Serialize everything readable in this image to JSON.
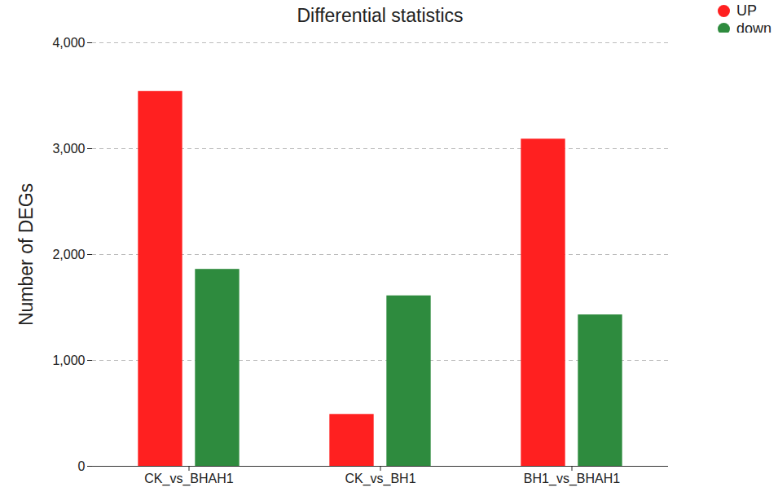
{
  "chart_data": {
    "type": "bar",
    "title": "Differential statistics",
    "y_label": "Number of DEGs",
    "categories": [
      "CK_vs_BHAH1",
      "CK_vs_BH1",
      "BH1_vs_BHAH1"
    ],
    "series": [
      {
        "name": "UP",
        "color": "#ff2020",
        "values": [
          3540,
          490,
          3090
        ]
      },
      {
        "name": "down",
        "color": "#2e8b3e",
        "values": [
          1860,
          1610,
          1430
        ]
      }
    ],
    "ylim": [
      0,
      4000
    ],
    "yticks": [
      0,
      1000,
      2000,
      3000,
      4000
    ],
    "grid": true,
    "legend": "top-right"
  }
}
